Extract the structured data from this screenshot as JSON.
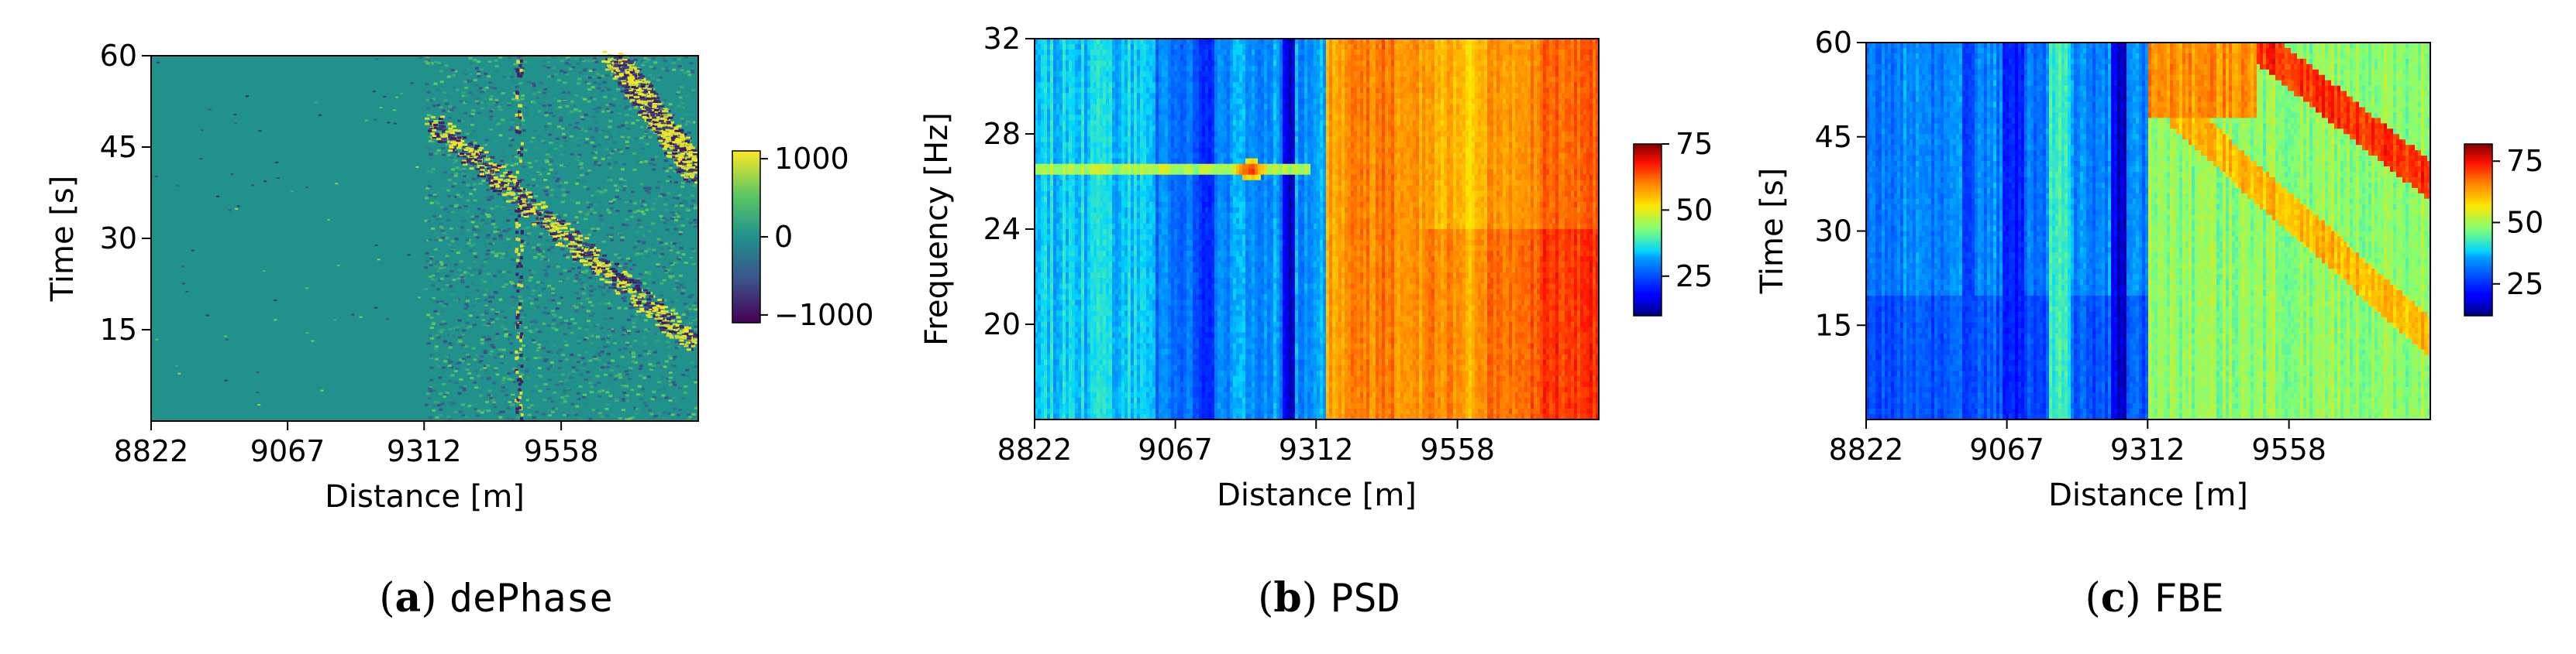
{
  "chart_data": [
    {
      "type": "heatmap",
      "panel": "a",
      "caption": {
        "label": "a",
        "name": "dePhase"
      },
      "title": "",
      "xlabel": "Distance [m]",
      "ylabel": "Time [s]",
      "xlim": [
        8822,
        9804
      ],
      "ylim": [
        0,
        60
      ],
      "x_ticks": [
        8822,
        9067,
        9312,
        9558
      ],
      "y_ticks": [
        15,
        30,
        45,
        60
      ],
      "colormap": "viridis",
      "colorbar": {
        "min": -1100,
        "max": 1100,
        "ticks": [
          1000,
          0,
          -1000
        ],
        "tick_labels": [
          "1000",
          "0",
          "−1000"
        ]
      },
      "colors": {
        "low": "#440154",
        "mid": "#21918c",
        "high": "#fde725"
      },
      "description_features": {
        "quiet_region_end": 9312,
        "diagonal_tracks": [
          [
            9312,
            50,
            9804,
            12
          ],
          [
            9650,
            60,
            9804,
            40
          ]
        ]
      }
    },
    {
      "type": "heatmap",
      "panel": "b",
      "caption": {
        "label": "b",
        "name": "PSD"
      },
      "title": "",
      "xlabel": "Distance [m]",
      "ylabel": "Frequency [Hz]",
      "xlim": [
        8822,
        9804
      ],
      "ylim": [
        16,
        32
      ],
      "x_ticks": [
        8822,
        9067,
        9312,
        9558
      ],
      "y_ticks": [
        20,
        24,
        28,
        32
      ],
      "colormap": "jet",
      "colorbar": {
        "min": 10,
        "max": 75,
        "ticks": [
          75,
          50,
          25
        ],
        "tick_labels": [
          "75",
          "50",
          "25"
        ]
      },
      "colors": {
        "low": "#00007f",
        "high": "#7f0000"
      },
      "description_features": {
        "dark_band": 9265,
        "hotspot": [
          9200,
          26.5
        ],
        "high_region_start": 9330
      }
    },
    {
      "type": "heatmap",
      "panel": "c",
      "caption": {
        "label": "c",
        "name": "FBE"
      },
      "title": "",
      "xlabel": "Distance [m]",
      "ylabel": "Time [s]",
      "xlim": [
        8822,
        9804
      ],
      "ylim": [
        0,
        60
      ],
      "x_ticks": [
        8822,
        9067,
        9312,
        9558
      ],
      "y_ticks": [
        15,
        30,
        45,
        60
      ],
      "colormap": "jet",
      "colorbar": {
        "min": 12,
        "max": 82,
        "ticks": [
          75,
          50,
          25
        ],
        "tick_labels": [
          "75",
          "50",
          "25"
        ]
      },
      "colors": {
        "low": "#00007f",
        "high": "#7f0000"
      },
      "description_features": {
        "dark_bands": [
          9080,
          9260
        ],
        "diagonal_tracks": [
          [
            9350,
            50,
            9804,
            13
          ],
          [
            9500,
            60,
            9804,
            38
          ]
        ]
      }
    }
  ]
}
